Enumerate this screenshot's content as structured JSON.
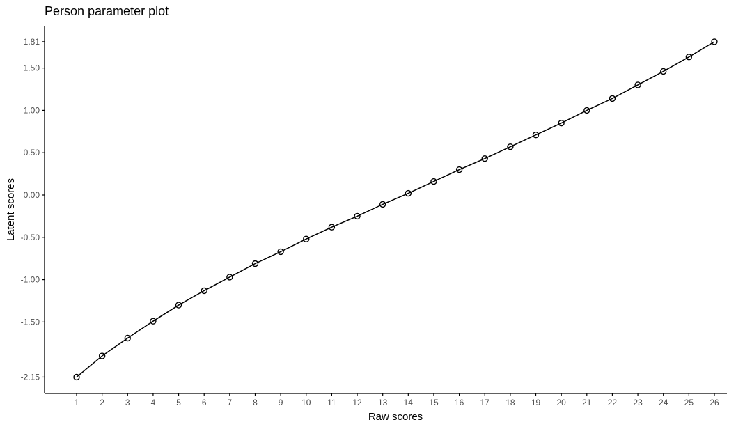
{
  "chart_data": {
    "type": "line",
    "title": "Person parameter plot",
    "xlabel": "Raw scores",
    "ylabel": "Latent scores",
    "x": [
      1,
      2,
      3,
      4,
      5,
      6,
      7,
      8,
      9,
      10,
      11,
      12,
      13,
      14,
      15,
      16,
      17,
      18,
      19,
      20,
      21,
      22,
      23,
      24,
      25,
      26
    ],
    "y": [
      -2.15,
      -1.9,
      -1.69,
      -1.49,
      -1.3,
      -1.13,
      -0.97,
      -0.81,
      -0.67,
      -0.52,
      -0.38,
      -0.25,
      -0.11,
      0.02,
      0.16,
      0.3,
      0.43,
      0.57,
      0.71,
      0.85,
      1.0,
      1.14,
      1.3,
      1.46,
      1.63,
      1.81
    ],
    "xticks": [
      "1",
      "2",
      "3",
      "4",
      "5",
      "6",
      "7",
      "8",
      "9",
      "10",
      "11",
      "12",
      "13",
      "14",
      "15",
      "16",
      "17",
      "18",
      "19",
      "20",
      "21",
      "22",
      "23",
      "24",
      "25",
      "26"
    ],
    "yticks": [
      -2.15,
      -1.5,
      -1.0,
      -0.5,
      0.0,
      0.5,
      1.0,
      1.5,
      1.81
    ],
    "ytick_labels": [
      "-2.15",
      "-1.50",
      "-1.00",
      "-0.50",
      "0.00",
      "0.50",
      "1.00",
      "1.50",
      "1.81"
    ],
    "xlim": [
      -0.25,
      26.5
    ],
    "ylim": [
      -2.37,
      2.0
    ],
    "grid": false,
    "marker": "open-circle",
    "line_color": "#000000"
  }
}
